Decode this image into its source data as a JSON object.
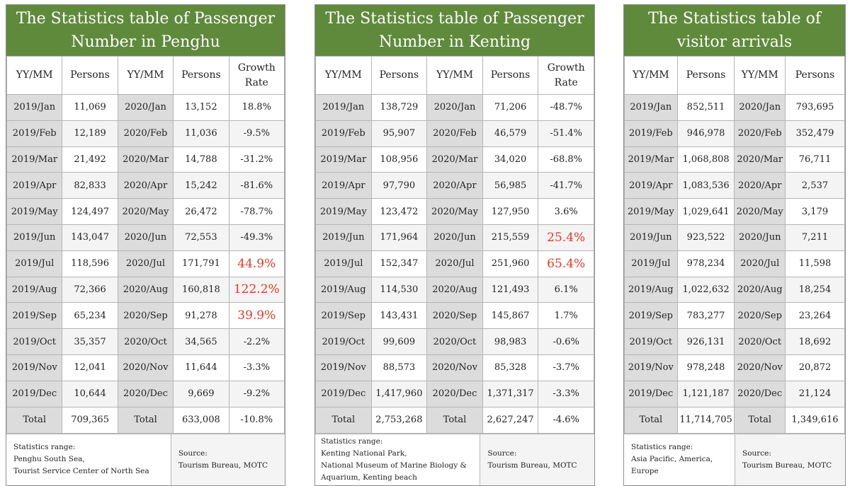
{
  "highlight_color": "#e03b2a",
  "title_bg_color": "#5f8a3c",
  "panels": [
    {
      "title": [
        "The Statistics table of Passenger",
        "Number in Penghu"
      ],
      "headers": [
        "YY/MM",
        "Persons",
        "YY/MM",
        "Persons",
        [
          "Growth",
          "Rate"
        ]
      ],
      "rows": [
        [
          "2019/Jan",
          "11,069",
          "2020/Jan",
          "13,152",
          "18.8%"
        ],
        [
          "2019/Feb",
          "12,189",
          "2020/Feb",
          "11,036",
          "-9.5%"
        ],
        [
          "2019/Mar",
          "21,492",
          "2020/Mar",
          "14,788",
          "-31.2%"
        ],
        [
          "2019/Apr",
          "82,833",
          "2020/Apr",
          "15,242",
          "-81.6%"
        ],
        [
          "2019/May",
          "124,497",
          "2020/May",
          "26,472",
          "-78.7%"
        ],
        [
          "2019/Jun",
          "143,047",
          "2020/Jun",
          "72,553",
          "-49.3%"
        ],
        [
          "2019/Jul",
          "118,596",
          "2020/Jul",
          "171,791",
          "44.9%"
        ],
        [
          "2019/Aug",
          "72,366",
          "2020/Aug",
          "160,818",
          "122.2%"
        ],
        [
          "2019/Sep",
          "65,234",
          "2020/Sep",
          "91,278",
          "39.9%"
        ],
        [
          "2019/Oct",
          "35,357",
          "2020/Oct",
          "34,565",
          "-2.2%"
        ],
        [
          "2019/Nov",
          "12,041",
          "2020/Nov",
          "11,644",
          "-3.3%"
        ],
        [
          "2019/Dec",
          "10,644",
          "2020/Dec",
          "9,669",
          "-9.2%"
        ]
      ],
      "highlighted_rows": [
        6,
        7,
        8
      ],
      "total": [
        "Total",
        "709,365",
        "Total",
        "633,008",
        "-10.8%"
      ],
      "range": [
        "Statistics range:",
        "Penghu South Sea,",
        "Tourist Service Center of North Sea"
      ],
      "source": [
        "Source:",
        "Tourism Bureau, MOTC"
      ]
    },
    {
      "title": [
        "The Statistics table of Passenger",
        "Number in Kenting"
      ],
      "headers": [
        "YY/MM",
        "Persons",
        "YY/MM",
        "Persons",
        [
          "Growth",
          "Rate"
        ]
      ],
      "rows": [
        [
          "2019/Jan",
          "138,729",
          "2020/Jan",
          "71,206",
          "-48.7%"
        ],
        [
          "2019/Feb",
          "95,907",
          "2020/Feb",
          "46,579",
          "-51.4%"
        ],
        [
          "2019/Mar",
          "108,956",
          "2020/Mar",
          "34,020",
          "-68.8%"
        ],
        [
          "2019/Apr",
          "97,790",
          "2020/Apr",
          "56,985",
          "-41.7%"
        ],
        [
          "2019/May",
          "123,472",
          "2020/May",
          "127,950",
          "3.6%"
        ],
        [
          "2019/Jun",
          "171,964",
          "2020/Jun",
          "215,559",
          "25.4%"
        ],
        [
          "2019/Jul",
          "152,347",
          "2020/Jul",
          "251,960",
          "65.4%"
        ],
        [
          "2019/Aug",
          "114,530",
          "2020/Aug",
          "121,493",
          "6.1%"
        ],
        [
          "2019/Sep",
          "143,431",
          "2020/Sep",
          "145,867",
          "1.7%"
        ],
        [
          "2019/Oct",
          "99,609",
          "2020/Oct",
          "98,983",
          "-0.6%"
        ],
        [
          "2019/Nov",
          "88,573",
          "2020/Nov",
          "85,328",
          "-3.7%"
        ],
        [
          "2019/Dec",
          "1,417,960",
          "2020/Dec",
          "1,371,317",
          "-3.3%"
        ]
      ],
      "highlighted_rows": [
        5,
        6
      ],
      "total": [
        "Total",
        "2,753,268",
        "Total",
        "2,627,247",
        "-4.6%"
      ],
      "range": [
        "Statistics range:",
        "Kenting National Park,",
        "National Museum of Marine Biology &",
        "Aquarium, Kenting beach"
      ],
      "source": [
        "Source:",
        "Tourism Bureau, MOTC"
      ]
    },
    {
      "title": [
        "The Statistics table of",
        "visitor arrivals"
      ],
      "headers": [
        "YY/MM",
        "Persons",
        "YY/MM",
        "Persons"
      ],
      "rows": [
        [
          "2019/Jan",
          "852,511",
          "2020/Jan",
          "793,695"
        ],
        [
          "2019/Feb",
          "946,978",
          "2020/Feb",
          "352,479"
        ],
        [
          "2019/Mar",
          "1,068,808",
          "2020/Mar",
          "76,711"
        ],
        [
          "2019/Apr",
          "1,083,536",
          "2020/Apr",
          "2,537"
        ],
        [
          "2019/May",
          "1,029,641",
          "2020/May",
          "3,179"
        ],
        [
          "2019/Jun",
          "923,522",
          "2020/Jun",
          "7,211"
        ],
        [
          "2019/Jul",
          "978,234",
          "2020/Jul",
          "11,598"
        ],
        [
          "2019/Aug",
          "1,022,632",
          "2020/Aug",
          "18,254"
        ],
        [
          "2019/Sep",
          "783,277",
          "2020/Sep",
          "23,264"
        ],
        [
          "2019/Oct",
          "926,131",
          "2020/Oct",
          "18,692"
        ],
        [
          "2019/Nov",
          "978,248",
          "2020/Nov",
          "20,872"
        ],
        [
          "2019/Dec",
          "1,121,187",
          "2020/Dec",
          "21,124"
        ]
      ],
      "highlighted_rows": [],
      "total": [
        "Total",
        "11,714,705",
        "Total",
        "1,349,616"
      ],
      "range": [
        "Statistics range:",
        "Asia Pacific, America,",
        "Europe"
      ],
      "source": [
        "Source:",
        "Tourism Bureau, MOTC"
      ]
    }
  ]
}
